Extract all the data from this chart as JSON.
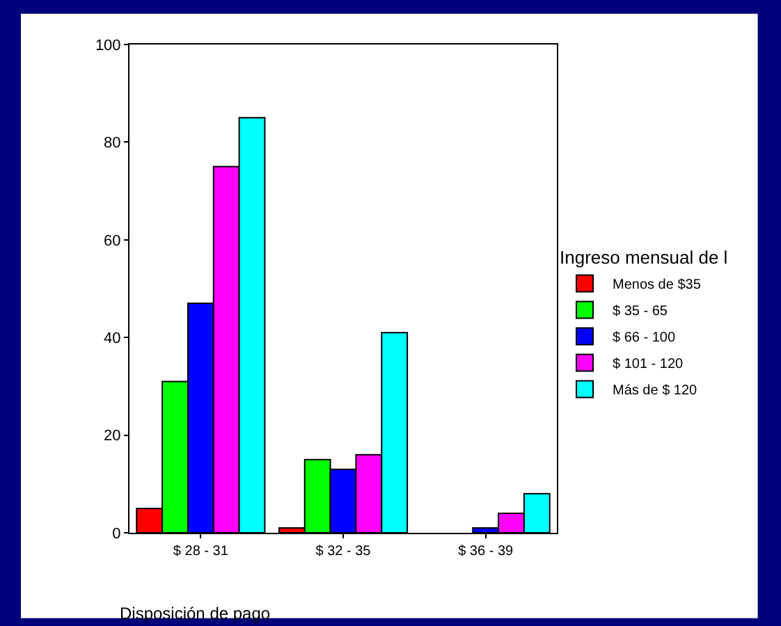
{
  "chart_data": {
    "type": "bar",
    "xlabel": "Disposición de pago",
    "legend_title": "Ingreso mensual de l",
    "categories": [
      "$ 28 - 31",
      "$ 32 - 35",
      "$ 36 - 39"
    ],
    "series": [
      {
        "name": "Menos de $35",
        "color": "#ff0000",
        "values": [
          5,
          1,
          null
        ]
      },
      {
        "name": "$ 35 - 65",
        "color": "#00ff00",
        "values": [
          31,
          15,
          null
        ]
      },
      {
        "name": "$ 66 - 100",
        "color": "#0000ff",
        "values": [
          47,
          13,
          1
        ]
      },
      {
        "name": "$ 101 - 120",
        "color": "#ff00ff",
        "values": [
          75,
          16,
          4
        ]
      },
      {
        "name": "Más de $ 120",
        "color": "#00ffff",
        "values": [
          85,
          41,
          8
        ]
      }
    ],
    "ylim": [
      0,
      100
    ],
    "yticks": [
      0,
      20,
      40,
      60,
      80,
      100
    ],
    "legend": "right"
  }
}
